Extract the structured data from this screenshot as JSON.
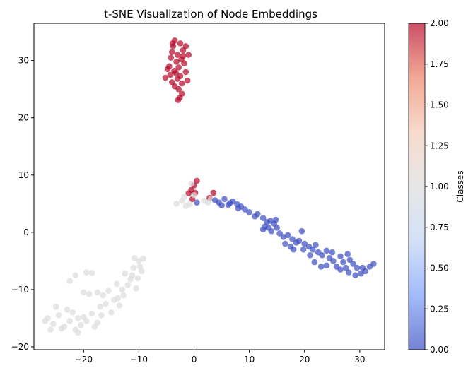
{
  "chart_data": {
    "type": "scatter",
    "title": "t-SNE Visualization of Node Embeddings",
    "xlabel": "",
    "ylabel": "",
    "xlim": [
      -29,
      34.5
    ],
    "ylim": [
      -20.5,
      36.5
    ],
    "xticks": [
      -20,
      -10,
      0,
      10,
      20,
      30
    ],
    "yticks": [
      -20,
      -10,
      0,
      10,
      20,
      30
    ],
    "grid": false,
    "colormap": "coolwarm",
    "point_alpha": 0.7,
    "colorbar": {
      "label": "Classes",
      "range": [
        0,
        2
      ],
      "ticks": [
        "0.00",
        "0.25",
        "0.50",
        "0.75",
        "1.00",
        "1.25",
        "1.50",
        "1.75",
        "2.00"
      ],
      "stops": [
        "#3b4cc0",
        "#7b9ff9",
        "#c0d4f5",
        "#dddddd",
        "#f2cbb7",
        "#ee8468",
        "#b40426"
      ]
    },
    "classes": [
      {
        "value": 0,
        "color": "#3b4cc0"
      },
      {
        "value": 1,
        "color": "#dcdcdc"
      },
      {
        "value": 2,
        "color": "#b40426"
      }
    ],
    "points": [
      {
        "x": -3.5,
        "y": 33.5,
        "c": 2
      },
      {
        "x": -2.5,
        "y": 33.0,
        "c": 2
      },
      {
        "x": -3.8,
        "y": 32.5,
        "c": 2
      },
      {
        "x": -2.0,
        "y": 31.8,
        "c": 2
      },
      {
        "x": -4.0,
        "y": 31.5,
        "c": 2
      },
      {
        "x": -3.0,
        "y": 31.0,
        "c": 2
      },
      {
        "x": -1.5,
        "y": 32.5,
        "c": 2
      },
      {
        "x": -4.2,
        "y": 30.5,
        "c": 2
      },
      {
        "x": -2.3,
        "y": 30.2,
        "c": 2
      },
      {
        "x": -3.2,
        "y": 29.8,
        "c": 2
      },
      {
        "x": -1.8,
        "y": 29.5,
        "c": 2
      },
      {
        "x": -4.5,
        "y": 29.0,
        "c": 2
      },
      {
        "x": -2.8,
        "y": 28.8,
        "c": 2
      },
      {
        "x": -3.6,
        "y": 28.2,
        "c": 2
      },
      {
        "x": -1.5,
        "y": 28.0,
        "c": 2
      },
      {
        "x": -4.3,
        "y": 27.5,
        "c": 2
      },
      {
        "x": -2.5,
        "y": 27.3,
        "c": 2
      },
      {
        "x": -5.2,
        "y": 27.0,
        "c": 2
      },
      {
        "x": -3.0,
        "y": 26.8,
        "c": 2
      },
      {
        "x": -1.2,
        "y": 26.5,
        "c": 2
      },
      {
        "x": -4.0,
        "y": 26.2,
        "c": 2
      },
      {
        "x": -2.2,
        "y": 26.0,
        "c": 2
      },
      {
        "x": -3.5,
        "y": 25.5,
        "c": 2
      },
      {
        "x": -2.8,
        "y": 25.0,
        "c": 2
      },
      {
        "x": -2.2,
        "y": 24.2,
        "c": 2
      },
      {
        "x": -2.6,
        "y": 23.5,
        "c": 2
      },
      {
        "x": -2.9,
        "y": 23.1,
        "c": 2
      },
      {
        "x": -1.0,
        "y": 31.0,
        "c": 2
      },
      {
        "x": -3.3,
        "y": 27.8,
        "c": 2
      },
      {
        "x": -4.8,
        "y": 28.5,
        "c": 2
      },
      {
        "x": -2.0,
        "y": 30.8,
        "c": 2
      },
      {
        "x": -3.9,
        "y": 33.0,
        "c": 2
      },
      {
        "x": 0.5,
        "y": 9.0,
        "c": 2
      },
      {
        "x": 0.0,
        "y": 8.2,
        "c": 2
      },
      {
        "x": -0.5,
        "y": 7.4,
        "c": 2
      },
      {
        "x": -1.0,
        "y": 6.8,
        "c": 2
      },
      {
        "x": 0.2,
        "y": 6.9,
        "c": 2
      },
      {
        "x": 3.5,
        "y": 6.9,
        "c": 2
      },
      {
        "x": 2.8,
        "y": 6.0,
        "c": 2
      },
      {
        "x": -0.3,
        "y": 5.8,
        "c": 2
      },
      {
        "x": -3.2,
        "y": 5.0,
        "c": 1
      },
      {
        "x": -2.2,
        "y": 5.5,
        "c": 1
      },
      {
        "x": -1.5,
        "y": 4.6,
        "c": 1
      },
      {
        "x": -0.8,
        "y": 4.9,
        "c": 1
      },
      {
        "x": 0.0,
        "y": 6.5,
        "c": 1
      },
      {
        "x": 1.8,
        "y": 5.5,
        "c": 1
      },
      {
        "x": 2.5,
        "y": 5.2,
        "c": 1
      },
      {
        "x": -1.8,
        "y": 6.2,
        "c": 1
      },
      {
        "x": -0.5,
        "y": 8.5,
        "c": 1
      },
      {
        "x": 3.0,
        "y": 5.8,
        "c": 1
      },
      {
        "x": -26.5,
        "y": -15.0,
        "c": 1
      },
      {
        "x": -25.5,
        "y": -16.0,
        "c": 1
      },
      {
        "x": -24.5,
        "y": -14.5,
        "c": 1
      },
      {
        "x": -26.0,
        "y": -17.0,
        "c": 1
      },
      {
        "x": -23.5,
        "y": -16.5,
        "c": 1
      },
      {
        "x": -22.5,
        "y": -15.5,
        "c": 1
      },
      {
        "x": -21.5,
        "y": -17.0,
        "c": 1
      },
      {
        "x": -20.5,
        "y": -16.2,
        "c": 1
      },
      {
        "x": -22.0,
        "y": -14.0,
        "c": 1
      },
      {
        "x": -20.0,
        "y": -14.8,
        "c": 1
      },
      {
        "x": -23.0,
        "y": -13.5,
        "c": 1
      },
      {
        "x": -25.0,
        "y": -13.0,
        "c": 1
      },
      {
        "x": -21.0,
        "y": -17.5,
        "c": 1
      },
      {
        "x": -19.5,
        "y": -15.5,
        "c": 1
      },
      {
        "x": -18.5,
        "y": -14.2,
        "c": 1
      },
      {
        "x": -17.5,
        "y": -15.8,
        "c": 1
      },
      {
        "x": -17.0,
        "y": -13.0,
        "c": 1
      },
      {
        "x": -16.0,
        "y": -12.5,
        "c": 1
      },
      {
        "x": -15.0,
        "y": -14.0,
        "c": 1
      },
      {
        "x": -16.5,
        "y": -11.0,
        "c": 1
      },
      {
        "x": -15.5,
        "y": -10.2,
        "c": 1
      },
      {
        "x": -14.5,
        "y": -11.8,
        "c": 1
      },
      {
        "x": -13.5,
        "y": -12.8,
        "c": 1
      },
      {
        "x": -13.0,
        "y": -10.0,
        "c": 1
      },
      {
        "x": -12.0,
        "y": -9.2,
        "c": 1
      },
      {
        "x": -11.5,
        "y": -8.2,
        "c": 1
      },
      {
        "x": -10.5,
        "y": -9.8,
        "c": 1
      },
      {
        "x": -12.5,
        "y": -7.2,
        "c": 1
      },
      {
        "x": -11.0,
        "y": -6.2,
        "c": 1
      },
      {
        "x": -10.0,
        "y": -5.0,
        "c": 1
      },
      {
        "x": -9.5,
        "y": -6.8,
        "c": 1
      },
      {
        "x": -10.8,
        "y": -4.5,
        "c": 1
      },
      {
        "x": -9.2,
        "y": -4.6,
        "c": 1
      },
      {
        "x": -19.0,
        "y": -10.8,
        "c": 1
      },
      {
        "x": -20.0,
        "y": -10.5,
        "c": 1
      },
      {
        "x": -22.5,
        "y": -8.5,
        "c": 1
      },
      {
        "x": -21.5,
        "y": -7.5,
        "c": 1
      },
      {
        "x": -19.5,
        "y": -7.0,
        "c": 1
      },
      {
        "x": -18.5,
        "y": -7.1,
        "c": 1
      },
      {
        "x": -17.5,
        "y": -10.5,
        "c": 1
      },
      {
        "x": -24.0,
        "y": -16.8,
        "c": 1
      },
      {
        "x": -27.0,
        "y": -15.5,
        "c": 1
      },
      {
        "x": -21.0,
        "y": -15.0,
        "c": 1
      },
      {
        "x": -18.0,
        "y": -16.5,
        "c": 1
      },
      {
        "x": -16.8,
        "y": -14.5,
        "c": 1
      },
      {
        "x": -14.0,
        "y": -9.0,
        "c": 1
      },
      {
        "x": -12.8,
        "y": -11.0,
        "c": 1
      },
      {
        "x": -11.2,
        "y": -7.5,
        "c": 1
      },
      {
        "x": -10.2,
        "y": -8.0,
        "c": 1
      },
      {
        "x": -9.8,
        "y": -6.0,
        "c": 1
      },
      {
        "x": -13.8,
        "y": -11.5,
        "c": 1
      },
      {
        "x": 0.5,
        "y": 5.2,
        "c": 0
      },
      {
        "x": 4.5,
        "y": 5.2,
        "c": 0
      },
      {
        "x": 5.5,
        "y": 5.8,
        "c": 0
      },
      {
        "x": 6.2,
        "y": 4.8,
        "c": 0
      },
      {
        "x": 7.0,
        "y": 5.4,
        "c": 0
      },
      {
        "x": 7.8,
        "y": 4.9,
        "c": 0
      },
      {
        "x": 8.5,
        "y": 4.5,
        "c": 0
      },
      {
        "x": 9.2,
        "y": 4.0,
        "c": 0
      },
      {
        "x": 10.0,
        "y": 3.5,
        "c": 0
      },
      {
        "x": 11.0,
        "y": 2.8,
        "c": 0
      },
      {
        "x": 12.5,
        "y": 2.5,
        "c": 0
      },
      {
        "x": 13.2,
        "y": 1.8,
        "c": 0
      },
      {
        "x": 12.8,
        "y": 1.0,
        "c": 0
      },
      {
        "x": 13.8,
        "y": 2.0,
        "c": 0
      },
      {
        "x": 14.5,
        "y": 1.5,
        "c": 0
      },
      {
        "x": 15.0,
        "y": 0.8,
        "c": 0
      },
      {
        "x": 14.0,
        "y": 0.2,
        "c": 0
      },
      {
        "x": 12.5,
        "y": 0.5,
        "c": 0
      },
      {
        "x": 15.5,
        "y": -0.2,
        "c": 0
      },
      {
        "x": 16.2,
        "y": -0.8,
        "c": 0
      },
      {
        "x": 17.0,
        "y": -0.5,
        "c": 0
      },
      {
        "x": 17.8,
        "y": -1.2,
        "c": 0
      },
      {
        "x": 18.5,
        "y": -1.8,
        "c": 0
      },
      {
        "x": 17.5,
        "y": -2.5,
        "c": 0
      },
      {
        "x": 19.0,
        "y": -1.5,
        "c": 0
      },
      {
        "x": 19.5,
        "y": 0.2,
        "c": 0
      },
      {
        "x": 20.0,
        "y": -2.0,
        "c": 0
      },
      {
        "x": 20.8,
        "y": -2.5,
        "c": 0
      },
      {
        "x": 21.5,
        "y": -3.0,
        "c": 0
      },
      {
        "x": 22.0,
        "y": -2.2,
        "c": 0
      },
      {
        "x": 22.5,
        "y": -3.5,
        "c": 0
      },
      {
        "x": 21.8,
        "y": -5.2,
        "c": 0
      },
      {
        "x": 23.2,
        "y": -4.0,
        "c": 0
      },
      {
        "x": 24.0,
        "y": -3.2,
        "c": 0
      },
      {
        "x": 24.5,
        "y": -4.5,
        "c": 0
      },
      {
        "x": 25.2,
        "y": -5.0,
        "c": 0
      },
      {
        "x": 25.8,
        "y": -6.0,
        "c": 0
      },
      {
        "x": 24.0,
        "y": -5.8,
        "c": 0
      },
      {
        "x": 26.5,
        "y": -4.2,
        "c": 0
      },
      {
        "x": 27.0,
        "y": -5.2,
        "c": 0
      },
      {
        "x": 27.8,
        "y": -3.8,
        "c": 0
      },
      {
        "x": 28.2,
        "y": -4.8,
        "c": 0
      },
      {
        "x": 28.8,
        "y": -5.5,
        "c": 0
      },
      {
        "x": 28.0,
        "y": -7.0,
        "c": 0
      },
      {
        "x": 29.5,
        "y": -6.2,
        "c": 0
      },
      {
        "x": 30.2,
        "y": -7.2,
        "c": 0
      },
      {
        "x": 31.0,
        "y": -6.8,
        "c": 0
      },
      {
        "x": 31.8,
        "y": -6.0,
        "c": 0
      },
      {
        "x": 32.5,
        "y": -5.5,
        "c": 0
      },
      {
        "x": 30.5,
        "y": -6.2,
        "c": 0
      },
      {
        "x": 29.2,
        "y": -7.5,
        "c": 0
      },
      {
        "x": 26.5,
        "y": -6.5,
        "c": 0
      },
      {
        "x": 23.0,
        "y": -6.0,
        "c": 0
      },
      {
        "x": 19.8,
        "y": -3.0,
        "c": 0
      },
      {
        "x": 18.0,
        "y": -3.0,
        "c": 0
      },
      {
        "x": 16.5,
        "y": -2.0,
        "c": 0
      },
      {
        "x": 13.5,
        "y": 0.8,
        "c": 0
      },
      {
        "x": 14.8,
        "y": 2.2,
        "c": 0
      },
      {
        "x": 11.5,
        "y": 3.2,
        "c": 0
      },
      {
        "x": 8.0,
        "y": 4.2,
        "c": 0
      },
      {
        "x": 6.5,
        "y": 5.1,
        "c": 0
      },
      {
        "x": 5.0,
        "y": 4.7,
        "c": 0
      },
      {
        "x": 3.8,
        "y": 5.6,
        "c": 0
      },
      {
        "x": 21.0,
        "y": -4.0,
        "c": 0
      },
      {
        "x": 25.0,
        "y": -3.5,
        "c": 0
      },
      {
        "x": 27.5,
        "y": -6.2,
        "c": 0
      }
    ]
  }
}
